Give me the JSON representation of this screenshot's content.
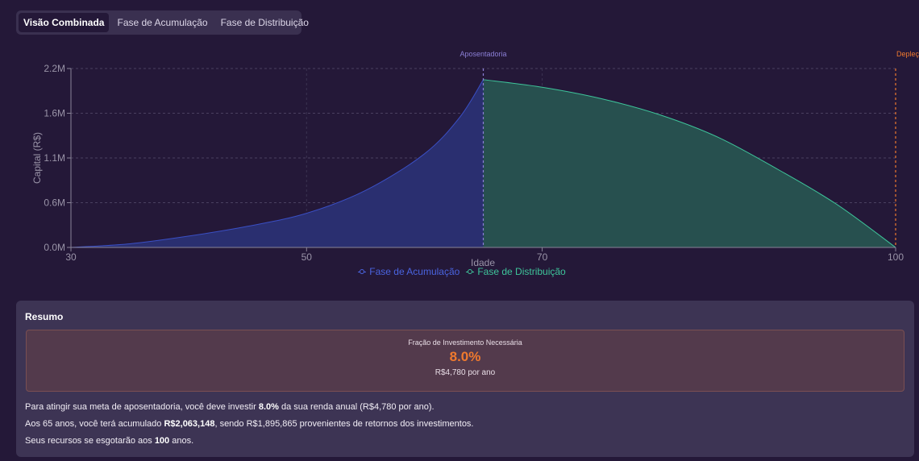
{
  "tabs": [
    {
      "label": "Visão Combinada",
      "active": true
    },
    {
      "label": "Fase de Acumulação",
      "active": false
    },
    {
      "label": "Fase de Distribuição",
      "active": false
    }
  ],
  "chart_data": {
    "type": "area",
    "xlabel": "Idade",
    "ylabel": "Capital (R$)",
    "xlim": [
      30,
      100
    ],
    "ylim": [
      0,
      2200000
    ],
    "x_ticks": [
      "30",
      "50",
      "70",
      "100"
    ],
    "x_tick_values": [
      30,
      50,
      70,
      100
    ],
    "y_ticks": [
      "0.0M",
      "0.6M",
      "1.1M",
      "1.6M",
      "2.2M"
    ],
    "y_tick_values": [
      0,
      550000,
      1100000,
      1650000,
      2200000
    ],
    "grid": true,
    "legend_position": "bottom",
    "annotations": [
      {
        "label": "Aposentadoria",
        "x": 65,
        "color": "#8b7fd6"
      },
      {
        "label": "Depleção",
        "x": 100,
        "color": "#f07a2e"
      }
    ],
    "series": [
      {
        "name": "Fase de Acumulação",
        "color": "#3a4fc4",
        "x": [
          30,
          35,
          40,
          45,
          50,
          55,
          60,
          63,
          65
        ],
        "y": [
          0,
          45000,
          140000,
          260000,
          420000,
          700000,
          1150000,
          1600000,
          2063148
        ]
      },
      {
        "name": "Fase de Distribuição",
        "color": "#3ec49a",
        "x": [
          65,
          70,
          75,
          80,
          85,
          90,
          95,
          100
        ],
        "y": [
          2063148,
          1970000,
          1830000,
          1630000,
          1350000,
          960000,
          530000,
          0
        ]
      }
    ]
  },
  "summary": {
    "title": "Resumo",
    "fraction_label": "Fração de Investimento Necessária",
    "fraction_value": "8.0%",
    "fraction_sub": "R$4,780 por ano",
    "line1_a": "Para atingir sua meta de aposentadoria, você deve investir ",
    "line1_b": "8.0%",
    "line1_c": " da sua renda anual (R$4,780 por ano).",
    "line2_a": "Aos 65 anos, você terá acumulado ",
    "line2_b": "R$2,063,148",
    "line2_c": ", sendo R$1,895,865 provenientes de retornos dos investimentos.",
    "line3_a": "Seus recursos se esgotarão aos ",
    "line3_b": "100",
    "line3_c": " anos."
  }
}
